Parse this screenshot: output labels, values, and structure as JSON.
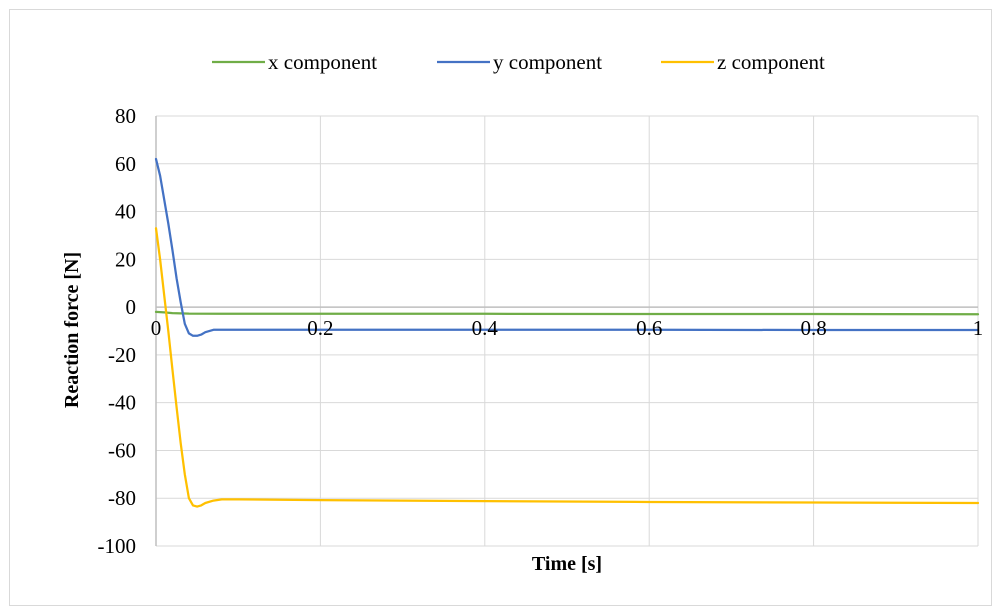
{
  "chart_data": {
    "type": "line",
    "title": "",
    "xlabel": "Time [s]",
    "ylabel": "Reaction force [N]",
    "xlim": [
      0,
      1
    ],
    "ylim": [
      -100,
      80
    ],
    "x_ticks": [
      0,
      0.2,
      0.4,
      0.6,
      0.8,
      1
    ],
    "x_tick_labels": [
      "0",
      "0.2",
      "0.4",
      "0.6",
      "0.8",
      "1"
    ],
    "y_ticks": [
      80,
      60,
      40,
      20,
      0,
      -20,
      -40,
      -60,
      -80,
      -100
    ],
    "y_tick_labels": [
      "80",
      "60",
      "40",
      "20",
      "0",
      "-20",
      "-40",
      "-60",
      "-80",
      "-100"
    ],
    "grid": true,
    "legend_position": "top",
    "series": [
      {
        "name": "x component",
        "color": "#70ad47",
        "x": [
          0,
          0.01,
          0.02,
          0.04,
          0.08,
          0.2,
          0.4,
          0.6,
          0.8,
          1.0
        ],
        "y": [
          -2,
          -2.2,
          -2.5,
          -2.7,
          -2.8,
          -2.8,
          -2.8,
          -2.9,
          -2.9,
          -3
        ]
      },
      {
        "name": "y component",
        "color": "#4472c4",
        "x": [
          0,
          0.005,
          0.01,
          0.015,
          0.02,
          0.025,
          0.03,
          0.035,
          0.04,
          0.045,
          0.05,
          0.055,
          0.06,
          0.07,
          0.08,
          0.2,
          0.4,
          0.6,
          0.8,
          1.0
        ],
        "y": [
          62,
          55,
          45,
          35,
          24,
          12,
          2,
          -7,
          -11,
          -12,
          -12,
          -11.5,
          -10.5,
          -9.5,
          -9.5,
          -9.5,
          -9.5,
          -9.5,
          -9.6,
          -9.6
        ],
        "y_note": null
      },
      {
        "name": "z component",
        "color": "#ffc000",
        "x": [
          0,
          0.005,
          0.01,
          0.015,
          0.02,
          0.025,
          0.03,
          0.035,
          0.04,
          0.045,
          0.05,
          0.055,
          0.06,
          0.07,
          0.08,
          0.1,
          0.2,
          0.4,
          0.6,
          0.8,
          1.0
        ],
        "y": [
          33,
          20,
          5,
          -10,
          -26,
          -42,
          -57,
          -70,
          -80,
          -83,
          -83.5,
          -83,
          -82,
          -81,
          -80.5,
          -80.5,
          -80.8,
          -81.2,
          -81.6,
          -81.8,
          -82
        ]
      }
    ]
  }
}
